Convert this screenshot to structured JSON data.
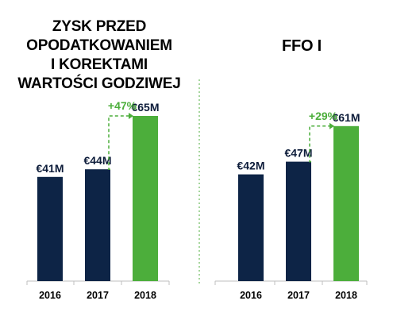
{
  "colors": {
    "navy": "#0d2446",
    "green": "#4cae3b",
    "axis": "#bfbfbf",
    "divider": "#4cae3b"
  },
  "chart_data": [
    {
      "type": "bar",
      "title": "ZYSK PRZED OPODATKOWANIEM I KOREKTAMI WARTOŚCI GODZIWEJ",
      "title_lines": [
        "ZYSK PRZED",
        "OPODATKOWANIEM",
        "I KOREKTAMI",
        "WARTOŚCI GODZIWEJ"
      ],
      "categories": [
        "2016",
        "2017",
        "2018"
      ],
      "values": [
        41,
        44,
        65
      ],
      "value_labels": [
        "€41M",
        "€44M",
        "€65M"
      ],
      "bar_colors": [
        "navy",
        "navy",
        "green"
      ],
      "growth_label": "+47%",
      "ylim": [
        0,
        70
      ]
    },
    {
      "type": "bar",
      "title": "FFO I",
      "title_lines": [
        "FFO I"
      ],
      "categories": [
        "2016",
        "2017",
        "2018"
      ],
      "values": [
        42,
        47,
        61
      ],
      "value_labels": [
        "€42M",
        "€47M",
        "€61M"
      ],
      "bar_colors": [
        "navy",
        "navy",
        "green"
      ],
      "growth_label": "+29%",
      "ylim": [
        0,
        70
      ]
    }
  ]
}
